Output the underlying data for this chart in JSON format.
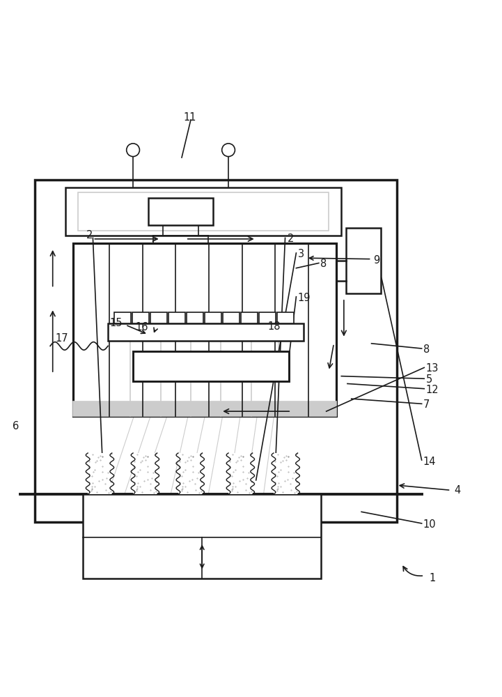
{
  "bg_color": "#ffffff",
  "line_color": "#1a1a1a",
  "gray_color": "#aaaaaa",
  "light_gray": "#cccccc",
  "figsize": [
    7.21,
    10.0
  ],
  "dpi": 100
}
